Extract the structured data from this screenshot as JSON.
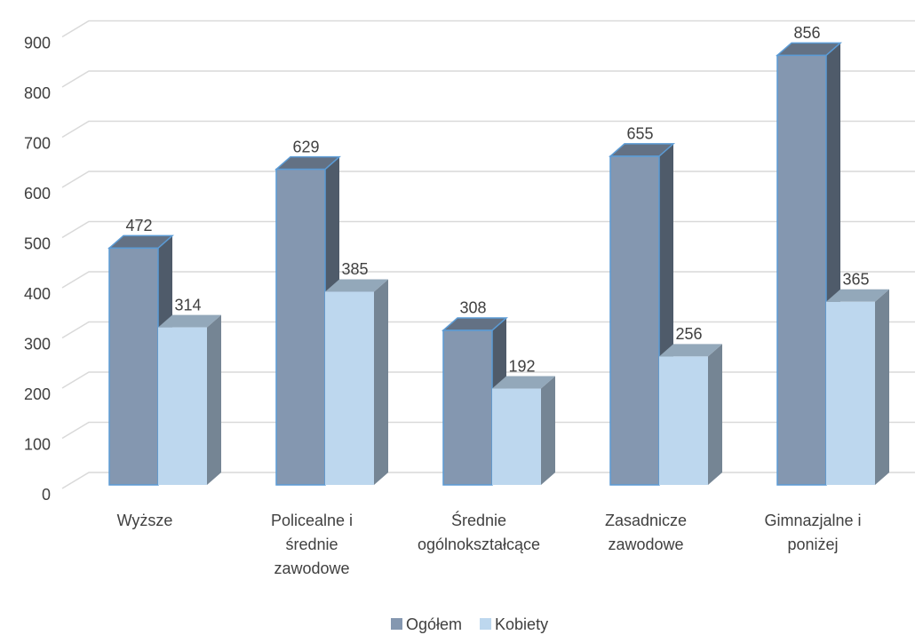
{
  "chart_data": {
    "type": "bar3d",
    "categories": [
      "Wyższe",
      "Policealne i średnie zawodowe",
      "Średnie ogólnokształcące",
      "Zasadnicze zawodowe",
      "Gimnazjalne i poniżej"
    ],
    "series": [
      {
        "name": "Ogółem",
        "color": "#8497b0",
        "values": [
          472,
          629,
          308,
          655,
          856
        ]
      },
      {
        "name": "Kobiety",
        "color": "#bdd7ee",
        "values": [
          314,
          385,
          192,
          256,
          365
        ]
      }
    ],
    "ylim": [
      0,
      900
    ],
    "yticks": [
      0,
      100,
      200,
      300,
      400,
      500,
      600,
      700,
      800,
      900
    ],
    "grid": true,
    "legend": "bottom"
  }
}
